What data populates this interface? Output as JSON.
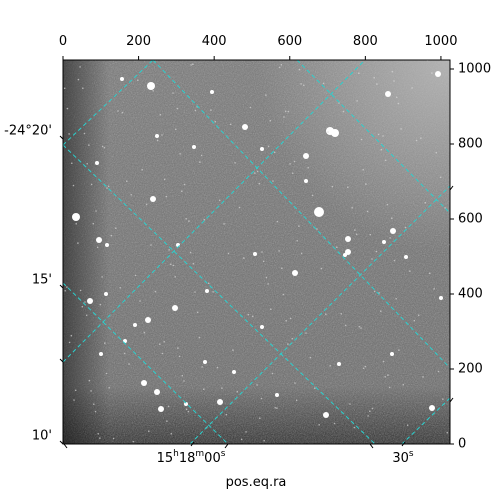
{
  "figure": {
    "xlabel": "pos.eq.ra",
    "top_ticks": [
      "0",
      "200",
      "400",
      "600",
      "800",
      "1000"
    ],
    "right_ticks": [
      "1000",
      "800",
      "600",
      "400",
      "200",
      "0"
    ],
    "dec_ticks": [
      "-24°20'",
      "15'",
      "10'"
    ],
    "ra_ticks": [
      {
        "h": "15",
        "m": "18",
        "s": "00",
        "label": "15h18m00s"
      },
      {
        "s": "30",
        "label": "30s"
      }
    ],
    "colors": {
      "grid": "#2ad1cf",
      "image_base": "#6e6e6e"
    }
  }
}
